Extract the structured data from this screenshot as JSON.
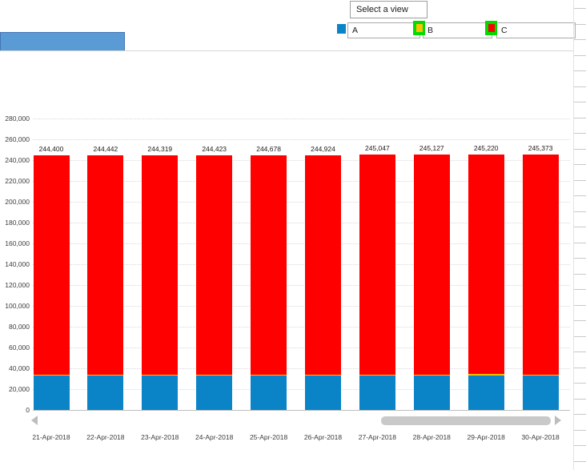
{
  "toolbar": {
    "view_selector_label": "Select a view"
  },
  "legend": {
    "selection_border_color": "#00dc00",
    "items": [
      {
        "label": "A",
        "swatch_color": "#0a84c6",
        "selected": false
      },
      {
        "label": "B",
        "swatch_color": "#ffc000",
        "selected": true
      },
      {
        "label": "C",
        "swatch_color": "#ff0000",
        "selected": true
      }
    ]
  },
  "chart_data": {
    "type": "bar",
    "stacked": true,
    "title": "",
    "xlabel": "",
    "ylabel": "",
    "categories": [
      "21-Apr-2018",
      "22-Apr-2018",
      "23-Apr-2018",
      "24-Apr-2018",
      "25-Apr-2018",
      "26-Apr-2018",
      "27-Apr-2018",
      "28-Apr-2018",
      "29-Apr-2018",
      "30-Apr-2018"
    ],
    "series": [
      {
        "name": "A",
        "color": "#0a84c6",
        "values": [
          33000,
          33000,
          33000,
          33000,
          33000,
          33000,
          33000,
          33000,
          33000,
          33000
        ]
      },
      {
        "name": "B",
        "color": "#ffc000",
        "values": [
          700,
          700,
          700,
          700,
          700,
          700,
          700,
          700,
          1600,
          900
        ]
      },
      {
        "name": "C",
        "color": "#ff0000",
        "values": [
          210700,
          210742,
          210619,
          210723,
          210978,
          211224,
          211347,
          211427,
          210620,
          211473
        ]
      }
    ],
    "totals": [
      244400,
      244442,
      244319,
      244423,
      244678,
      244924,
      245047,
      245127,
      245220,
      245373
    ],
    "total_labels": [
      "244,400",
      "244,442",
      "244,319",
      "244,423",
      "244,678",
      "244,924",
      "245,047",
      "245,127",
      "245,220",
      "245,373"
    ],
    "ylim": [
      0,
      280000
    ],
    "ytick_step": 20000,
    "grid": "horizontal-dotted",
    "legend_position": "top-right"
  },
  "scrollbar": {
    "orientation": "horizontal"
  },
  "colors": {
    "accent_button": "#5b9bd5",
    "gridline": "#d9d9d9",
    "axis": "#bfbfbf",
    "scrollbar_thumb": "#c9c9c9"
  }
}
